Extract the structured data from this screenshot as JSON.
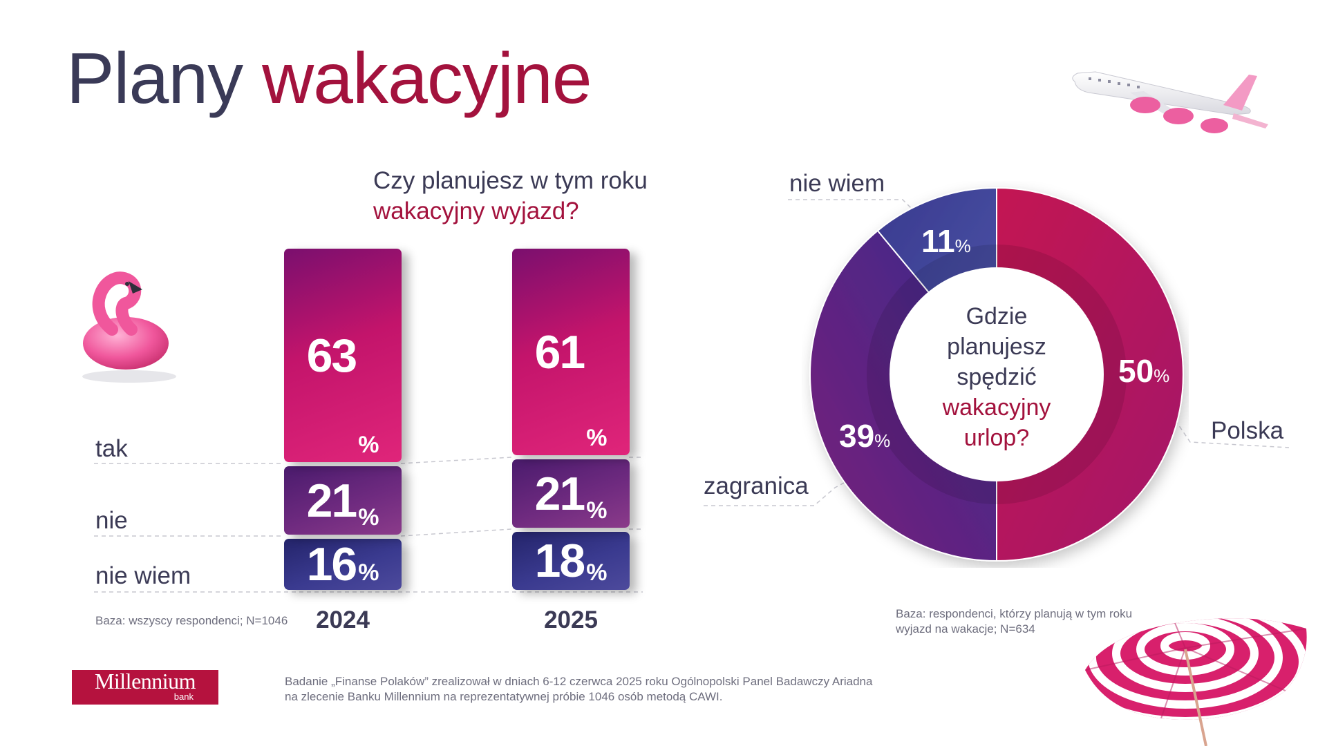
{
  "title": {
    "part1": "Plany",
    "part2": "wakacyjne"
  },
  "bar_question": {
    "line1": "Czy planujesz w tym roku",
    "line2": "wakacyjny wyjazd?"
  },
  "donut_question": {
    "line1": "Gdzie",
    "line2": "planujesz",
    "line3": "spędzić",
    "line4": "wakacyjny",
    "line5": "urlop?"
  },
  "base_left": "Baza: wszyscy respondenci; N=1046",
  "base_right": {
    "line1": "Baza: respondenci, którzy planują w tym roku",
    "line2": "wyjazd na wakacje; N=634"
  },
  "footer": {
    "line1": "Badanie „Finanse Polaków” zrealizował w dniach 6-12 czerwca 2025 roku Ogólnopolski Panel Badawczy Ariadna",
    "line2": "na zlecenie Banku Millennium na reprezentatywnej próbie 1046 osób metodą CAWI."
  },
  "logo": {
    "name": "Millennium",
    "sub": "bank"
  },
  "icons": [
    "flamingo-float-icon",
    "airplane-icon",
    "beach-umbrella-icon"
  ],
  "colors": {
    "accent": "#a3123d",
    "dark": "#3a3a57",
    "tak": "#c3146b",
    "nie": "#6e2a7f",
    "nie_wiem": "#3a3a8f"
  },
  "chart_data": [
    {
      "type": "bar",
      "stacked": true,
      "categories": [
        "2024",
        "2025"
      ],
      "series": [
        {
          "name": "tak",
          "values": [
            63,
            61
          ]
        },
        {
          "name": "nie",
          "values": [
            21,
            21
          ]
        },
        {
          "name": "nie wiem",
          "values": [
            16,
            18
          ]
        }
      ],
      "title": "Czy planujesz w tym roku wakacyjny wyjazd?",
      "unit": "%"
    },
    {
      "type": "pie",
      "donut": true,
      "labels": [
        "Polska",
        "zagranica",
        "nie wiem"
      ],
      "values": [
        50,
        39,
        11
      ],
      "title": "Gdzie planujesz spędzić wakacyjny urlop?",
      "unit": "%"
    }
  ]
}
